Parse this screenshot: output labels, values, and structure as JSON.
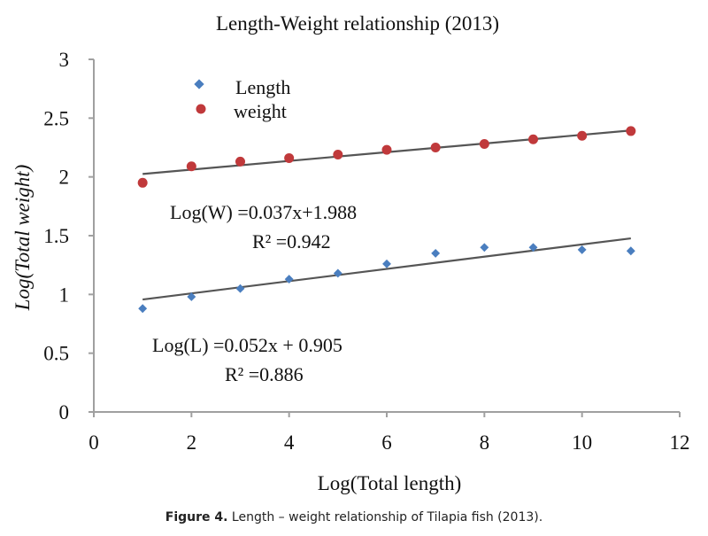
{
  "chart_data": {
    "type": "scatter",
    "title": "Length-Weight relationship (2013)",
    "xlabel": "Log(Total length)",
    "ylabel": "Log(Total weight)",
    "xlim": [
      0,
      12
    ],
    "ylim": [
      0,
      3
    ],
    "x_ticks": [
      "0",
      "2",
      "4",
      "6",
      "8",
      "10",
      "12"
    ],
    "y_ticks": [
      "0",
      "0.5",
      "1",
      "1.5",
      "2",
      "2.5",
      "3"
    ],
    "grid": false,
    "legend_position": "top-left",
    "series": [
      {
        "name": "Length",
        "color": "#4a7ebf",
        "marker": "diamond",
        "x": [
          1,
          2,
          3,
          4,
          5,
          6,
          7,
          8,
          9,
          10,
          11
        ],
        "values": [
          0.88,
          0.98,
          1.05,
          1.13,
          1.18,
          1.26,
          1.35,
          1.4,
          1.4,
          1.38,
          1.37
        ],
        "trendline": {
          "slope": 0.052,
          "intercept": 0.905,
          "x_range": [
            1,
            11
          ]
        }
      },
      {
        "name": "weight",
        "color": "#c0393b",
        "marker": "circle",
        "x": [
          1,
          2,
          3,
          4,
          5,
          6,
          7,
          8,
          9,
          10,
          11
        ],
        "values": [
          1.95,
          2.09,
          2.13,
          2.16,
          2.19,
          2.23,
          2.25,
          2.28,
          2.32,
          2.35,
          2.39
        ],
        "trendline": {
          "slope": 0.037,
          "intercept": 1.988,
          "x_range": [
            1,
            11
          ]
        }
      }
    ],
    "annotations": [
      {
        "name": "weight-equation",
        "text": "Log(W) =0.037x+1.988"
      },
      {
        "name": "weight-r2",
        "text": "R² =0.942"
      },
      {
        "name": "length-equation",
        "text": "Log(L) =0.052x + 0.905"
      },
      {
        "name": "length-r2",
        "text": "R² =0.886"
      }
    ]
  },
  "caption": {
    "label": "Figure  4.",
    "text": " Length – weight relationship of Tilapia fish (2013)."
  }
}
